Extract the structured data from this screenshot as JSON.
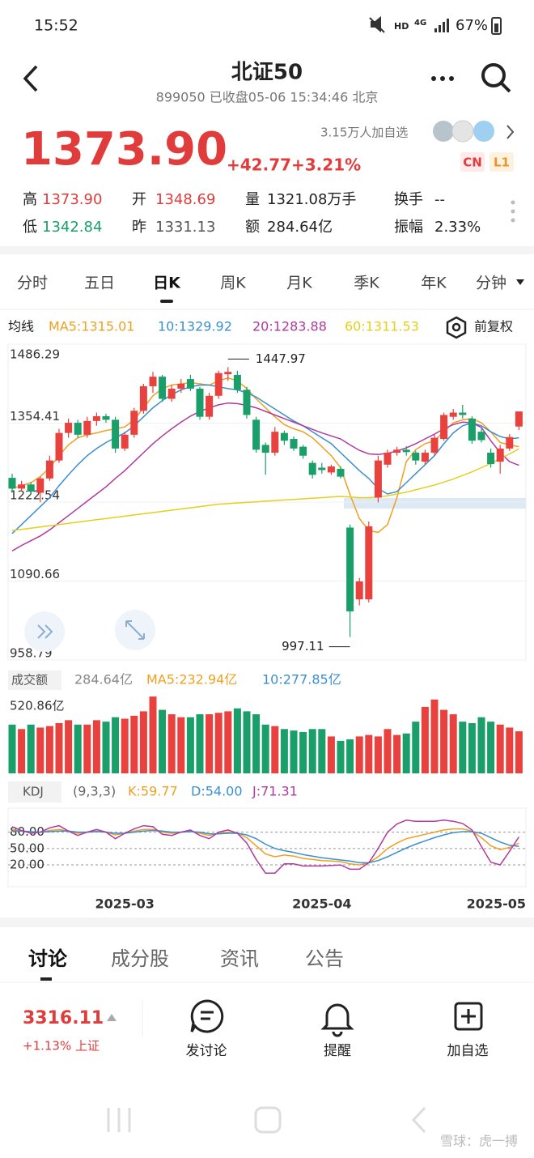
{
  "status_bar": {
    "time": "15:52",
    "hd": "HD",
    "network": "4G",
    "battery": "67%"
  },
  "header": {
    "title": "北证50",
    "subtitle": "899050 已收盘05-06 15:34:46 北京"
  },
  "quote": {
    "price": "1373.90",
    "change": "+42.77",
    "change_pct": "+3.21%",
    "followers": "3.15万人加自选",
    "badges": [
      "CN",
      "L1"
    ],
    "stats": [
      {
        "label": "高",
        "value": "1373.90"
      },
      {
        "label": "开",
        "value": "1348.69"
      },
      {
        "label": "量",
        "value": "1321.08万手"
      },
      {
        "label": "换手",
        "value": "--"
      },
      {
        "label": "低",
        "value": "1342.84"
      },
      {
        "label": "昨",
        "value": "1331.13"
      },
      {
        "label": "额",
        "value": "284.64亿"
      },
      {
        "label": "振幅",
        "value": "2.33%"
      }
    ]
  },
  "tabs": {
    "items": [
      "分时",
      "五日",
      "日K",
      "周K",
      "月K",
      "季K",
      "年K",
      "分钟"
    ],
    "active": 2
  },
  "ma_legend": {
    "label": "均线",
    "adjust": "前复权"
  },
  "chart_data": [
    {
      "type": "candlestick",
      "up_color": "#e8413e",
      "down_color": "#1a9e6a",
      "open": [
        1263,
        1245,
        1252,
        1238,
        1262,
        1292,
        1338,
        1355,
        1335,
        1358,
        1366,
        1360,
        1312,
        1335,
        1375,
        1416,
        1432,
        1395,
        1412,
        1428,
        1412,
        1365,
        1400,
        1436,
        1435,
        1410,
        1360,
        1318,
        1305,
        1338,
        1328,
        1315,
        1288,
        1280,
        1272,
        1278,
        1180,
        1060,
        1060,
        1230,
        1285,
        1305,
        1310,
        1305,
        1290,
        1305,
        1328,
        1365,
        1372,
        1362,
        1340,
        1305,
        1290,
        1312,
        1348.69
      ],
      "high": [
        1270,
        1258,
        1256,
        1265,
        1300,
        1345,
        1362,
        1360,
        1365,
        1372,
        1370,
        1365,
        1340,
        1380,
        1420,
        1440,
        1435,
        1418,
        1428,
        1435,
        1415,
        1405,
        1442,
        1447.97,
        1442,
        1415,
        1365,
        1322,
        1348,
        1342,
        1332,
        1318,
        1292,
        1288,
        1285,
        1282,
        1185,
        1096,
        1190,
        1300,
        1310,
        1315,
        1316,
        1308,
        1310,
        1335,
        1372,
        1378,
        1385,
        1366,
        1345,
        1312,
        1318,
        1336,
        1373.9
      ],
      "low": [
        1238,
        1240,
        1236,
        1222,
        1258,
        1288,
        1330,
        1330,
        1330,
        1350,
        1355,
        1305,
        1308,
        1330,
        1370,
        1405,
        1390,
        1390,
        1405,
        1408,
        1360,
        1360,
        1395,
        1425,
        1405,
        1362,
        1305,
        1268,
        1300,
        1318,
        1308,
        1295,
        1262,
        1270,
        1268,
        1262,
        997.11,
        1050,
        1055,
        1222,
        1280,
        1300,
        1300,
        1285,
        1285,
        1300,
        1325,
        1360,
        1362,
        1320,
        1322,
        1280,
        1270,
        1308,
        1342.84
      ],
      "close": [
        1245,
        1252,
        1240,
        1262,
        1292,
        1338,
        1355,
        1335,
        1358,
        1366,
        1360,
        1312,
        1335,
        1375,
        1416,
        1432,
        1395,
        1412,
        1420,
        1412,
        1365,
        1400,
        1438,
        1440,
        1410,
        1368,
        1310,
        1305,
        1340,
        1325,
        1312,
        1300,
        1268,
        1276,
        1282,
        1265,
        1040,
        1090,
        1182,
        1292,
        1305,
        1310,
        1306,
        1292,
        1305,
        1330,
        1368,
        1372,
        1368,
        1325,
        1326,
        1286,
        1312,
        1331.13,
        1373.9
      ],
      "ylim": [
        958.79,
        1486.29
      ],
      "yticks": [
        958.79,
        1090.66,
        1222.54,
        1354.41,
        1486.29
      ],
      "series": [
        {
          "name": "MA5:1315.01",
          "color": "#f0a020",
          "values": [
            1245,
            1250,
            1255,
            1265,
            1280,
            1300,
            1318,
            1330,
            1335,
            1338,
            1342,
            1345,
            1348,
            1360,
            1380,
            1400,
            1412,
            1418,
            1420,
            1422,
            1420,
            1418,
            1425,
            1430,
            1425,
            1412,
            1395,
            1380,
            1365,
            1352,
            1345,
            1340,
            1330,
            1315,
            1300,
            1280,
            1235,
            1195,
            1175,
            1172,
            1185,
            1230,
            1290,
            1310,
            1320,
            1325,
            1340,
            1355,
            1360,
            1362,
            1355,
            1340,
            1322,
            1318,
            1315.01
          ]
        },
        {
          "name": "10:1329.92",
          "color": "#3a8fd0",
          "values": [
            1170,
            1185,
            1200,
            1215,
            1230,
            1250,
            1268,
            1285,
            1300,
            1312,
            1322,
            1330,
            1338,
            1350,
            1365,
            1380,
            1392,
            1402,
            1410,
            1415,
            1418,
            1418,
            1415,
            1412,
            1410,
            1405,
            1398,
            1388,
            1378,
            1368,
            1358,
            1350,
            1340,
            1330,
            1320,
            1305,
            1290,
            1275,
            1262,
            1245,
            1236,
            1240,
            1255,
            1270,
            1285,
            1300,
            1320,
            1338,
            1350,
            1355,
            1350,
            1340,
            1332,
            1328,
            1329.92
          ]
        },
        {
          "name": "20:1283.88",
          "color": "#b03aa0",
          "values": [
            1141,
            1150,
            1158,
            1166,
            1176,
            1188,
            1200,
            1212,
            1224,
            1236,
            1248,
            1262,
            1275,
            1290,
            1305,
            1320,
            1333,
            1345,
            1356,
            1366,
            1374,
            1380,
            1385,
            1388,
            1387,
            1384,
            1380,
            1374,
            1368,
            1362,
            1356,
            1350,
            1344,
            1338,
            1333,
            1328,
            1318,
            1309,
            1303,
            1302,
            1304,
            1308,
            1313,
            1320,
            1328,
            1336,
            1345,
            1352,
            1356,
            1355,
            1347,
            1325,
            1305,
            1290,
            1283.88
          ]
        },
        {
          "name": "60:1311.53",
          "color": "#e6cf1c",
          "values": [
            1175,
            1177,
            1179,
            1181,
            1183,
            1185,
            1187,
            1189,
            1191,
            1193,
            1195,
            1197,
            1199,
            1201,
            1203,
            1205,
            1207,
            1209,
            1211,
            1213,
            1215,
            1217,
            1219,
            1220,
            1221,
            1222,
            1223,
            1224,
            1225,
            1226,
            1227,
            1228,
            1229,
            1230,
            1231,
            1232,
            1231,
            1230,
            1230,
            1231,
            1233,
            1236,
            1239,
            1243,
            1247,
            1251,
            1256,
            1261,
            1267,
            1273,
            1280,
            1287,
            1295,
            1303,
            1311.53
          ]
        }
      ]
    },
    {
      "type": "bar",
      "title": "成交额",
      "legend": [
        {
          "text": "284.64亿",
          "color": "#888888"
        },
        {
          "text": "MA5:232.94亿",
          "color": "#f0a020"
        },
        {
          "text": "10:277.85亿",
          "color": "#3a8fd0"
        }
      ],
      "values": [
        330,
        300,
        330,
        310,
        320,
        340,
        360,
        330,
        330,
        360,
        350,
        380,
        370,
        390,
        420,
        520,
        430,
        400,
        380,
        380,
        400,
        400,
        410,
        420,
        440,
        420,
        400,
        330,
        320,
        300,
        290,
        280,
        300,
        300,
        250,
        220,
        230,
        250,
        260,
        250,
        300,
        260,
        270,
        350,
        450,
        500,
        430,
        400,
        350,
        340,
        380,
        350,
        330,
        310,
        284.64
      ],
      "ylim": [
        0,
        520.86
      ],
      "yticks": [
        {
          "value": 520.86,
          "label": "520.86亿"
        }
      ]
    },
    {
      "type": "line",
      "title": "KDJ",
      "subtitle": "(9,3,3)",
      "ylim": [
        -20,
        124
      ],
      "grid": "dashed",
      "yticks": [
        {
          "value": 20,
          "label": "20.00"
        },
        {
          "value": 50,
          "label": "50.00"
        },
        {
          "value": 80,
          "label": "80.00"
        }
      ],
      "xlim": [
        0,
        54
      ],
      "xticks": [
        {
          "value": 12,
          "label": "2025-03"
        },
        {
          "value": 33,
          "label": "2025-04"
        },
        {
          "value": 54,
          "label": "2025-05"
        }
      ],
      "series": [
        {
          "name": "K:59.77",
          "color": "#f0a020",
          "values": [
            85,
            82,
            80,
            80,
            83,
            85,
            82,
            78,
            80,
            82,
            80,
            75,
            78,
            82,
            85,
            85,
            80,
            78,
            80,
            82,
            78,
            74,
            78,
            80,
            78,
            70,
            55,
            40,
            35,
            38,
            36,
            32,
            30,
            28,
            27,
            26,
            22,
            20,
            24,
            35,
            50,
            60,
            68,
            72,
            76,
            80,
            84,
            86,
            86,
            82,
            70,
            55,
            48,
            52,
            59.77
          ]
        },
        {
          "name": "D:54.00",
          "color": "#3a8fd0",
          "values": [
            82,
            82,
            81,
            80,
            81,
            82,
            82,
            80,
            80,
            81,
            80,
            78,
            78,
            80,
            82,
            83,
            82,
            80,
            80,
            81,
            80,
            77,
            77,
            78,
            78,
            75,
            68,
            58,
            50,
            46,
            43,
            39,
            36,
            33,
            31,
            29,
            27,
            24,
            24,
            28,
            35,
            43,
            51,
            58,
            64,
            70,
            75,
            79,
            81,
            81,
            78,
            70,
            62,
            56,
            54.0
          ]
        },
        {
          "name": "J:71.31",
          "color": "#b03aa0",
          "values": [
            90,
            83,
            78,
            80,
            88,
            92,
            82,
            74,
            80,
            85,
            80,
            68,
            78,
            86,
            92,
            90,
            76,
            74,
            80,
            84,
            74,
            68,
            80,
            84,
            78,
            60,
            30,
            5,
            5,
            22,
            22,
            18,
            18,
            18,
            19,
            20,
            12,
            12,
            24,
            50,
            80,
            95,
            102,
            100,
            100,
            100,
            102,
            100,
            96,
            84,
            54,
            25,
            20,
            45,
            71.31
          ]
        }
      ]
    }
  ],
  "content_tabs": {
    "items": [
      "讨论",
      "成分股",
      "资讯",
      "公告"
    ],
    "active": 0
  },
  "bottom_bar": {
    "index_price": "3316.11",
    "index_change": "+1.13% 上证",
    "actions": [
      "发讨论",
      "提醒",
      "加自选"
    ]
  },
  "watermark": "雪球：虎一搏"
}
